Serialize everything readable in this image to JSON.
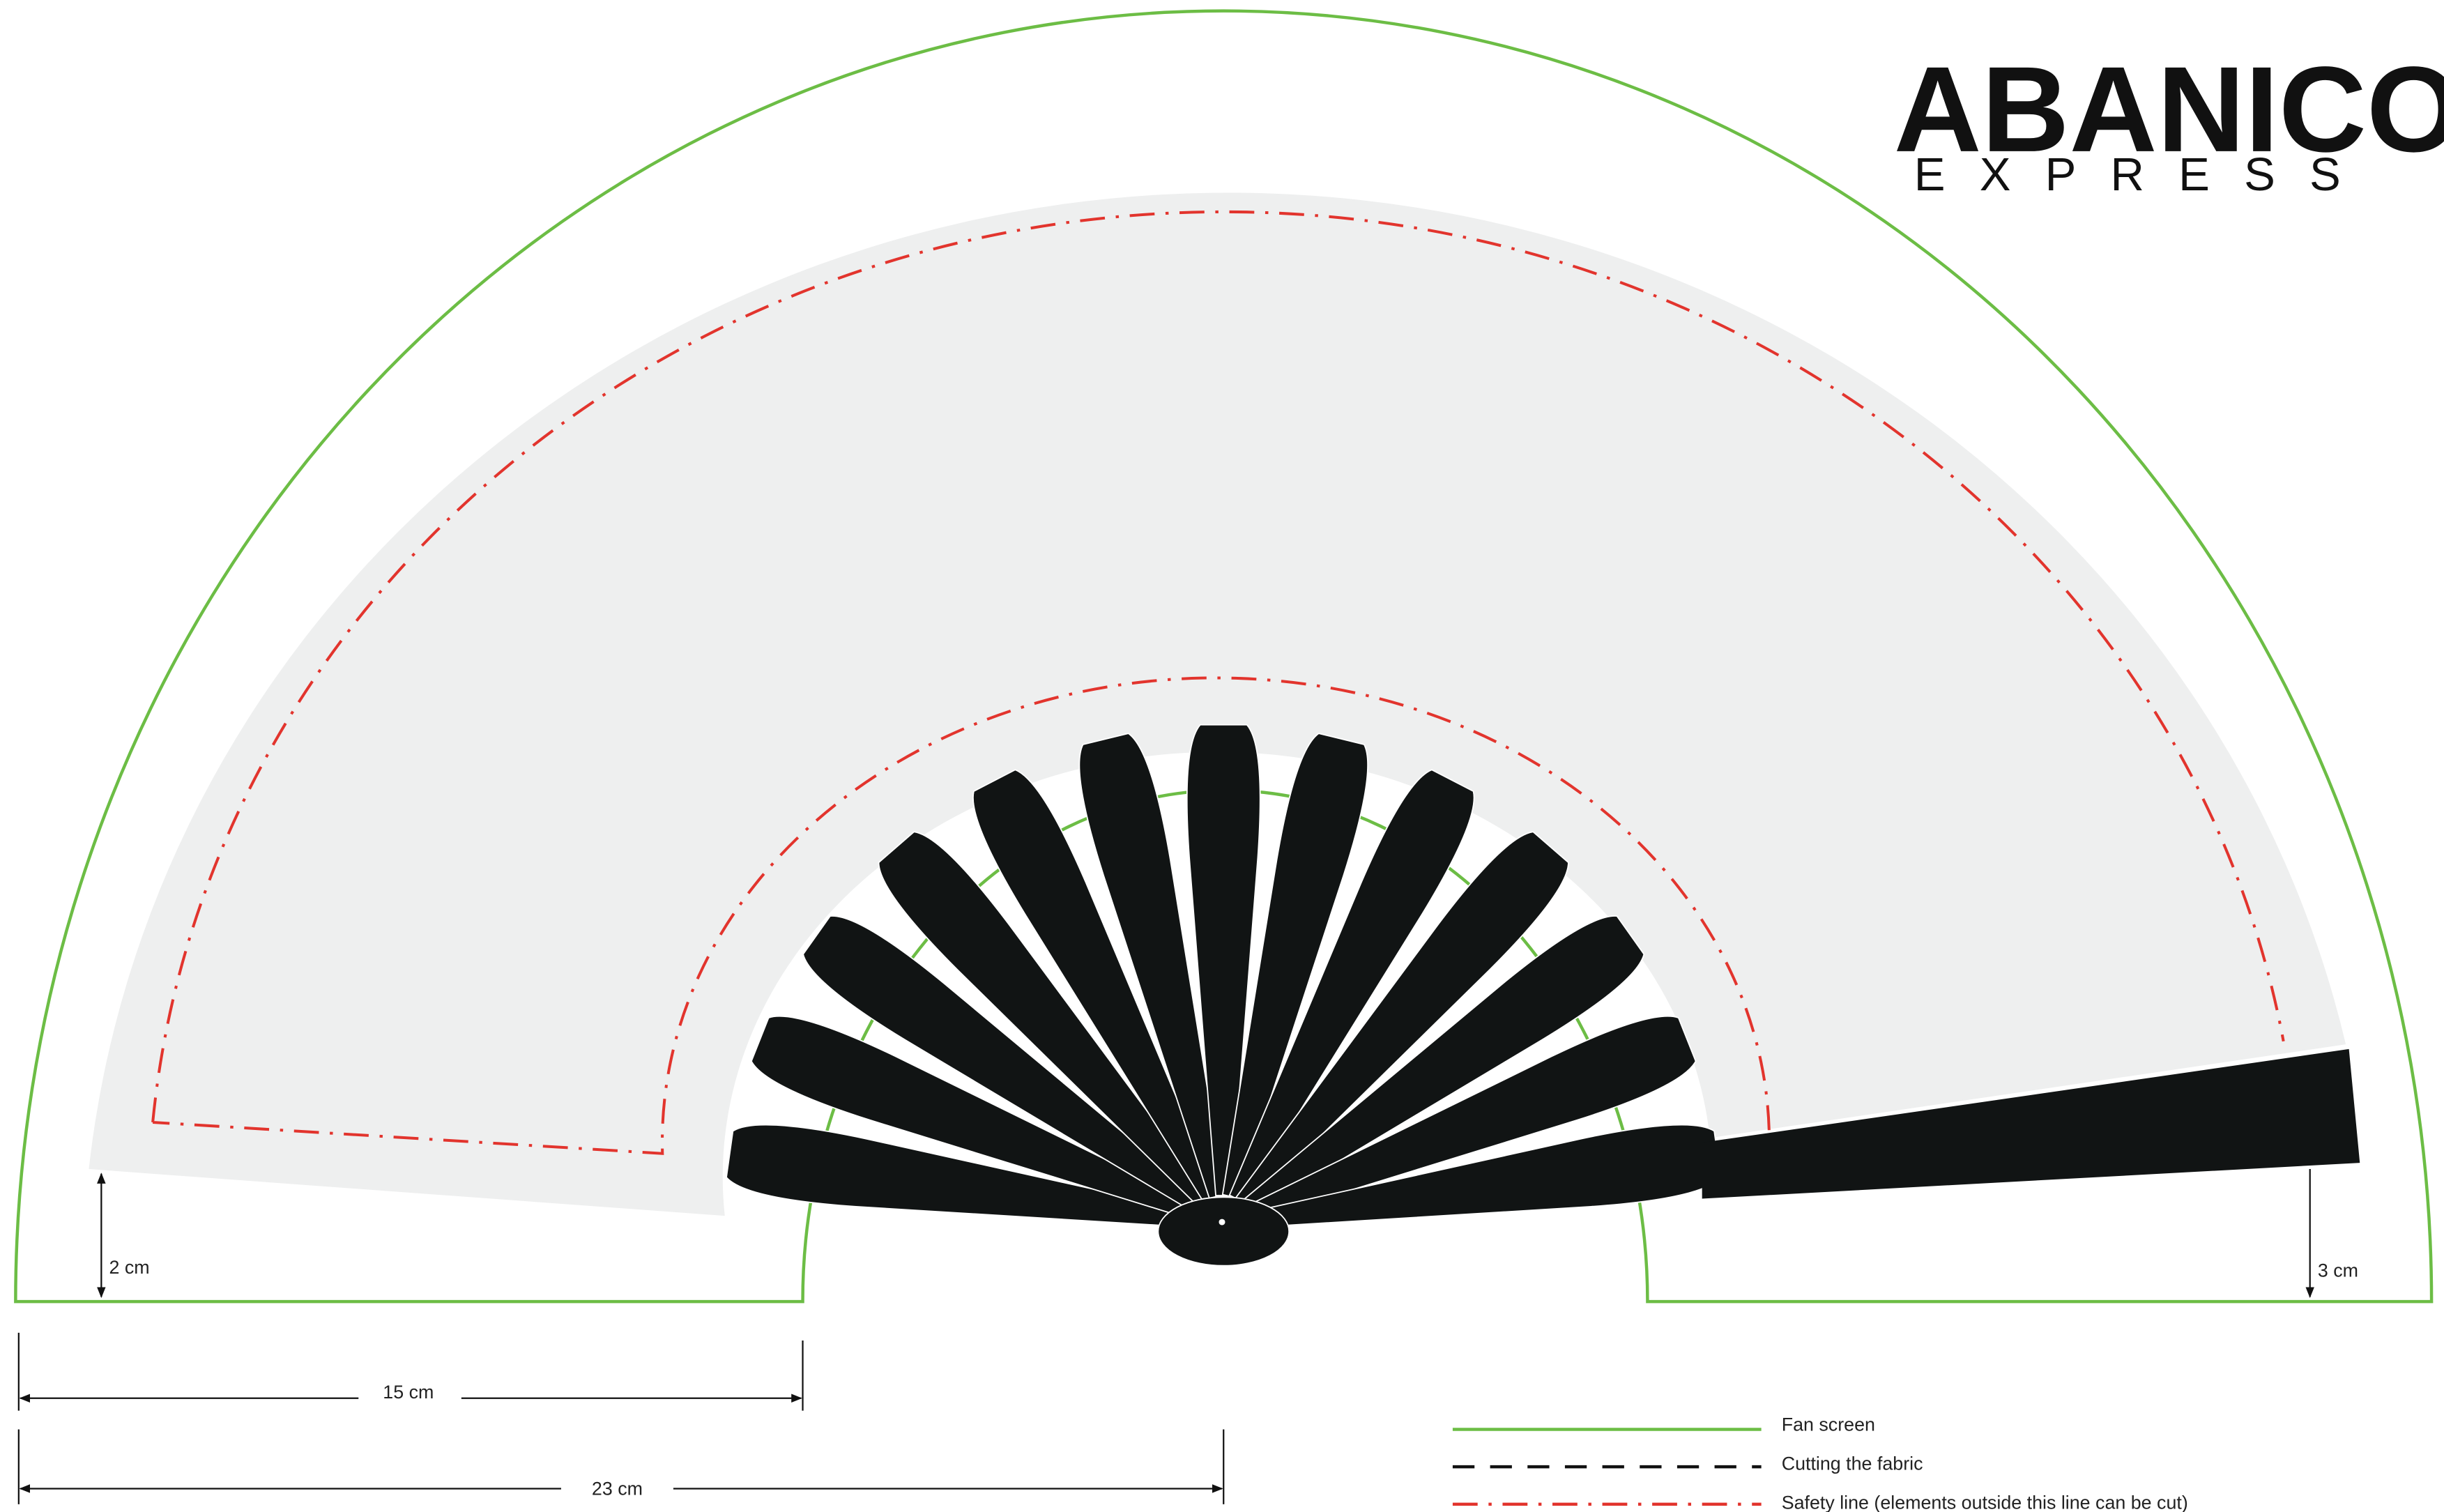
{
  "logo": {
    "name": "ABANICO",
    "tagline": "EXPRESS"
  },
  "dimensions": {
    "left_margin": "2 cm",
    "right_margin": "3 cm",
    "inner_width": "15 cm",
    "half_width": "23 cm"
  },
  "legend": {
    "items": [
      "Fan screen",
      "Cutting the fabric",
      "Safety line (elements outside this line can be cut)"
    ]
  }
}
